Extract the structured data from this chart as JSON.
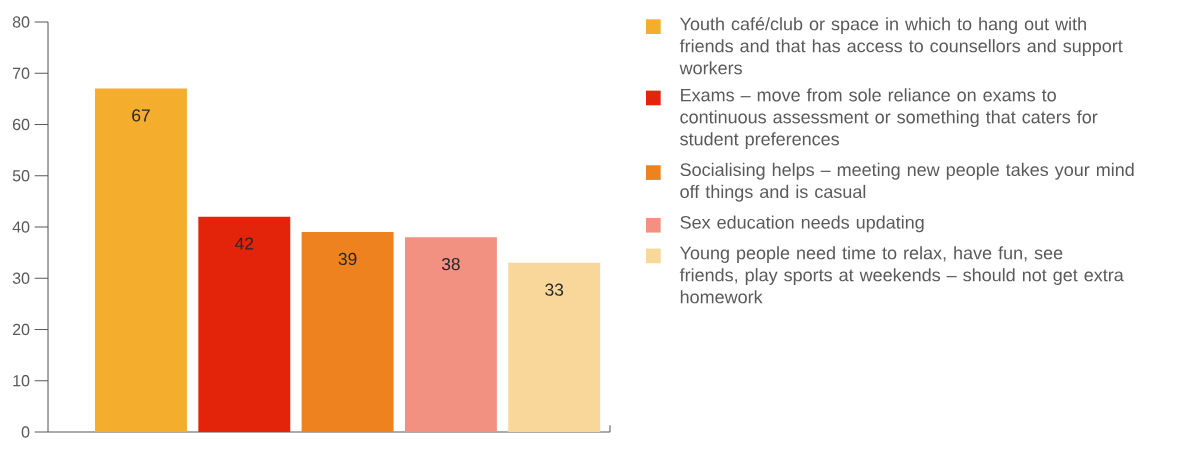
{
  "chart_data": {
    "type": "bar",
    "categories": [
      null,
      null,
      null,
      null,
      null
    ],
    "series": [
      {
        "name": "Youth café/club or space in which to hang out with friends and that has access to counsellors and support workers",
        "color": "#f5ad2e",
        "values": [
          67,
          null,
          null,
          null,
          null
        ]
      },
      {
        "name": "Exams – move from sole reliance on exams to continuous assessment or something that caters for student preferences",
        "color": "#e3240a",
        "values": [
          null,
          42,
          null,
          null,
          null
        ]
      },
      {
        "name": "Socialising helps – meeting new people takes your mind off things and is casual",
        "color": "#ee821e",
        "values": [
          null,
          null,
          39,
          null,
          null
        ]
      },
      {
        "name": "Sex education needs updating",
        "color": "#f29182",
        "values": [
          null,
          null,
          null,
          38,
          null
        ]
      },
      {
        "name": "Young people need time to relax, have fun, see friends, play sports at weekends – should not get extra homework",
        "color": "#f9d79a",
        "values": [
          null,
          null,
          null,
          null,
          33
        ]
      }
    ],
    "ylim": [
      0,
      80
    ],
    "yticks": [
      0,
      10,
      20,
      30,
      40,
      50,
      60,
      70,
      80
    ],
    "data_labels": true,
    "legend": "right"
  }
}
